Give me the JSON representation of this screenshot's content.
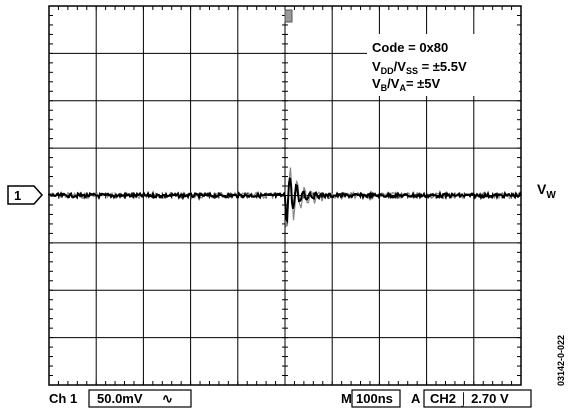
{
  "chart_data": {
    "type": "line",
    "title": "",
    "xlabel": "",
    "ylabel": "",
    "grid": true,
    "divisions": {
      "x": 10,
      "y": 8
    },
    "series": [
      {
        "name": "VW",
        "description_values": "flat baseline with a damped glitch immediately after trigger"
      }
    ]
  },
  "annotations": {
    "code": "Code = 0x80",
    "vdd_main": "V",
    "vdd_sub": "DD",
    "vss_main": "/V",
    "vss_sub": "SS",
    "vdd_value": " = ±5.5V",
    "vb_main": "V",
    "vb_sub": "B",
    "va_main": "/V",
    "va_sub": "A",
    "vb_value": "= ±5V"
  },
  "trace_label": {
    "main": "V",
    "sub": "W"
  },
  "channel_marker": "1",
  "figure_id": "03142-0-022",
  "status_bar": {
    "channel": "Ch 1",
    "volts_per_div": "50.0mV",
    "coupling_symbol": "∿",
    "m_label": "M",
    "time_per_div": "100ns",
    "a_label": "A",
    "trigger": "CH2 ⌡ 2.70 V"
  }
}
